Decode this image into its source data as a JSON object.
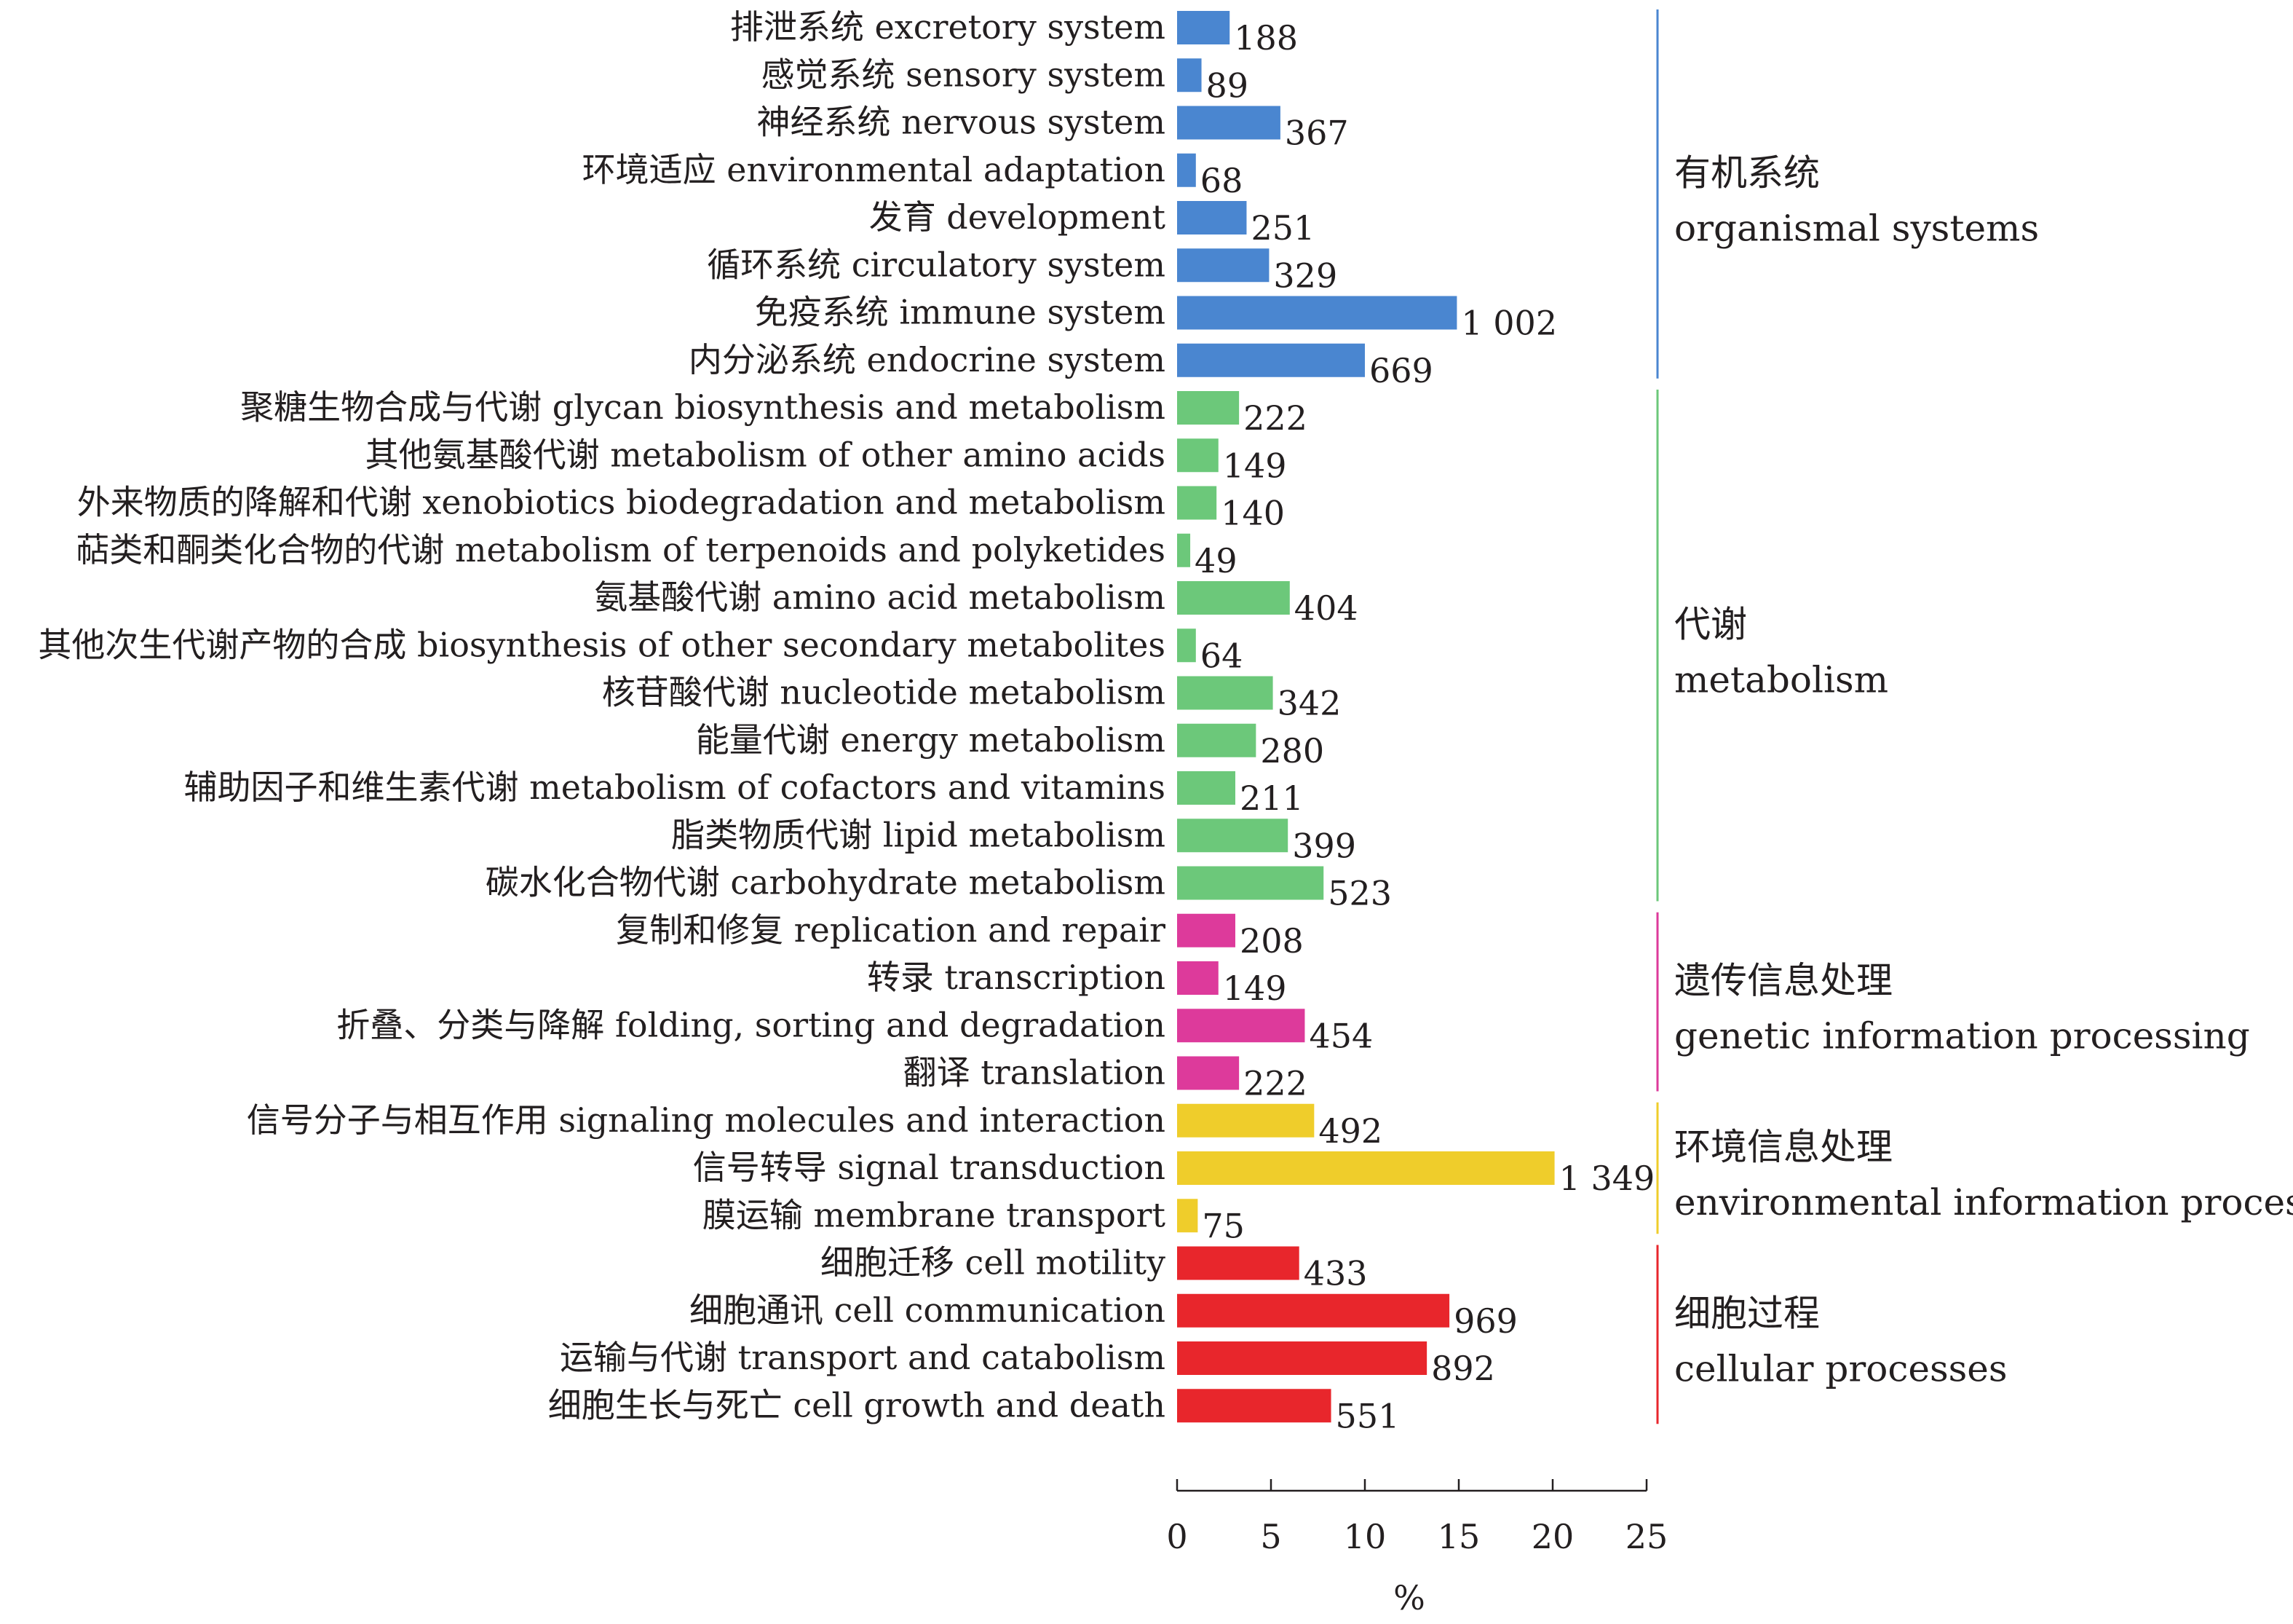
{
  "chart_data": {
    "type": "bar",
    "orientation": "horizontal",
    "xlabel": "%",
    "xlim": [
      0,
      25
    ],
    "xticks": [
      "0",
      "5",
      "10",
      "15",
      "20",
      "25"
    ],
    "grid": false,
    "categories": [
      {
        "label": "排泄系统 excretory system",
        "value": 2.8,
        "count": "188",
        "group": 0
      },
      {
        "label": "感觉系统 sensory system",
        "value": 1.3,
        "count": "89",
        "group": 0
      },
      {
        "label": "神经系统 nervous system",
        "value": 5.5,
        "count": "367",
        "group": 0
      },
      {
        "label": "环境适应 environmental adaptation",
        "value": 1.0,
        "count": "68",
        "group": 0
      },
      {
        "label": "发育 development",
        "value": 3.7,
        "count": "251",
        "group": 0
      },
      {
        "label": "循环系统 circulatory system",
        "value": 4.9,
        "count": "329",
        "group": 0
      },
      {
        "label": "免疫系统 immune system",
        "value": 14.9,
        "count": "1 002",
        "group": 0
      },
      {
        "label": "内分泌系统 endocrine system",
        "value": 10.0,
        "count": "669",
        "group": 0
      },
      {
        "label": "聚糖生物合成与代谢 glycan biosynthesis and metabolism",
        "value": 3.3,
        "count": "222",
        "group": 1
      },
      {
        "label": "其他氨基酸代谢 metabolism of other amino acids",
        "value": 2.2,
        "count": "149",
        "group": 1
      },
      {
        "label": "外来物质的降解和代谢 xenobiotics biodegradation and metabolism",
        "value": 2.1,
        "count": "140",
        "group": 1
      },
      {
        "label": "萜类和酮类化合物的代谢 metabolism of terpenoids and polyketides",
        "value": 0.7,
        "count": "49",
        "group": 1
      },
      {
        "label": "氨基酸代谢 amino acid metabolism",
        "value": 6.0,
        "count": "404",
        "group": 1
      },
      {
        "label": "其他次生代谢产物的合成 biosynthesis of other secondary metabolites",
        "value": 1.0,
        "count": "64",
        "group": 1
      },
      {
        "label": "核苷酸代谢 nucleotide metabolism",
        "value": 5.1,
        "count": "342",
        "group": 1
      },
      {
        "label": "能量代谢 energy metabolism",
        "value": 4.2,
        "count": "280",
        "group": 1
      },
      {
        "label": "辅助因子和维生素代谢 metabolism of cofactors and vitamins",
        "value": 3.1,
        "count": "211",
        "group": 1
      },
      {
        "label": "脂类物质代谢 lipid metabolism",
        "value": 5.9,
        "count": "399",
        "group": 1
      },
      {
        "label": "碳水化合物代谢 carbohydrate metabolism",
        "value": 7.8,
        "count": "523",
        "group": 1
      },
      {
        "label": "复制和修复 replication and repair",
        "value": 3.1,
        "count": "208",
        "group": 2
      },
      {
        "label": "转录 transcription",
        "value": 2.2,
        "count": "149",
        "group": 2
      },
      {
        "label": "折叠、分类与降解 folding, sorting and degradation",
        "value": 6.8,
        "count": "454",
        "group": 2
      },
      {
        "label": "翻译 translation",
        "value": 3.3,
        "count": "222",
        "group": 2
      },
      {
        "label": "信号分子与相互作用 signaling molecules and interaction",
        "value": 7.3,
        "count": "492",
        "group": 3
      },
      {
        "label": "信号转导 signal transduction",
        "value": 20.1,
        "count": "1 349",
        "group": 3
      },
      {
        "label": "膜运输 membrane transport",
        "value": 1.1,
        "count": "75",
        "group": 3
      },
      {
        "label": "细胞迁移 cell motility",
        "value": 6.5,
        "count": "433",
        "group": 4
      },
      {
        "label": "细胞通讯 cell communication",
        "value": 14.5,
        "count": "969",
        "group": 4
      },
      {
        "label": "运输与代谢 transport and catabolism",
        "value": 13.3,
        "count": "892",
        "group": 4
      },
      {
        "label": "细胞生长与死亡 cell growth and death",
        "value": 8.2,
        "count": "551",
        "group": 4
      }
    ],
    "groups": [
      {
        "name_zh": "有机系统",
        "name_en": "organismal systems",
        "color": "#4a86d0"
      },
      {
        "name_zh": "代谢",
        "name_en": "metabolism",
        "color": "#6cc87a"
      },
      {
        "name_zh": "遗传信息处理",
        "name_en": "genetic information processing",
        "color": "#dd3a9b"
      },
      {
        "name_zh": "环境信息处理",
        "name_en": "environmental information processing",
        "color": "#efcd2b"
      },
      {
        "name_zh": "细胞过程",
        "name_en": "cellular processes",
        "color": "#e8262c"
      }
    ]
  }
}
